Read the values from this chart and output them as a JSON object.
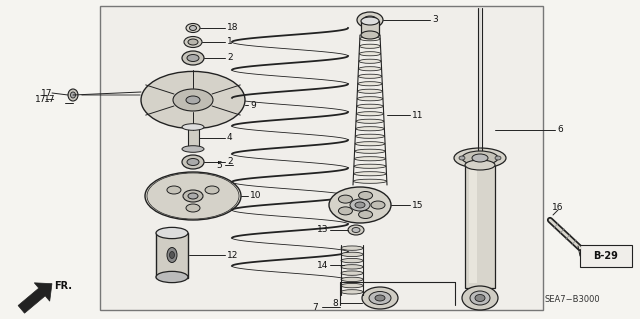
{
  "bg_color": "#f5f4f0",
  "border_color": "#888888",
  "inner_bg": "#f0eeea",
  "line_color": "#222222",
  "text_color": "#111111",
  "bottom_text": "SEA7−B3000",
  "ref_label": "B-29",
  "arrow_label": "FR.",
  "figsize": [
    6.4,
    3.19
  ],
  "dpi": 100
}
